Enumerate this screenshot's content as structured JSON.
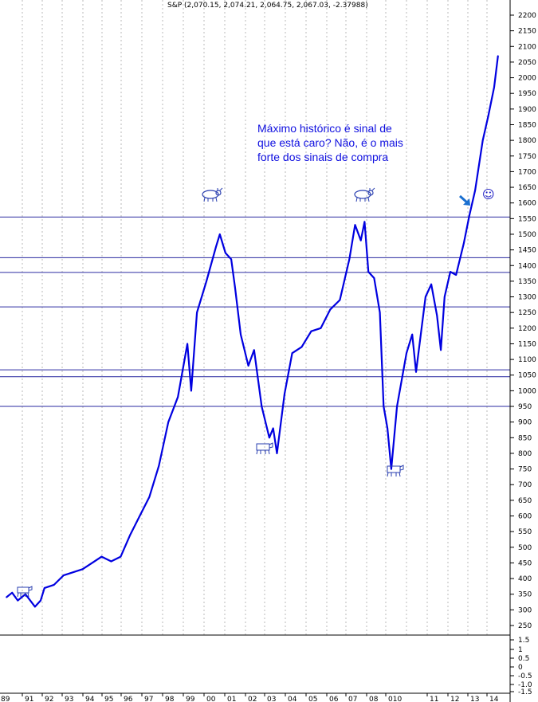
{
  "chart_data": {
    "type": "line",
    "title": "S&P (2,070.15, 2,074.21, 2,064.75, 2,067.03, -2.37988)",
    "x_ticks": [
      "89",
      "91",
      "92",
      "93",
      "94",
      "95",
      "96",
      "97",
      "98",
      "99",
      "00",
      "01",
      "02",
      "03",
      "04",
      "05",
      "06",
      "07",
      "08",
      "010",
      "11",
      "12",
      "13",
      "14"
    ],
    "y_ticks": [
      250,
      300,
      350,
      400,
      450,
      500,
      550,
      600,
      650,
      700,
      750,
      800,
      850,
      900,
      950,
      1000,
      1050,
      1100,
      1150,
      1200,
      1250,
      1300,
      1350,
      1400,
      1450,
      1500,
      1550,
      1600,
      1650,
      1700,
      1750,
      1800,
      1850,
      1900,
      1950,
      2000,
      2050,
      2100,
      2150,
      2200
    ],
    "ylim": [
      200,
      2230
    ],
    "xlim": [
      1989.0,
      2015.0
    ],
    "series": [
      {
        "x": [
          1989.0,
          1989.3,
          1989.6,
          1990.0,
          1990.5,
          1990.8,
          1991.0,
          1991.5,
          1992.0,
          1992.5,
          1993.0,
          1993.5,
          1994.0,
          1994.5,
          1995.0,
          1995.5,
          1996.0,
          1996.5,
          1997.0,
          1997.5,
          1998.0,
          1998.5,
          1998.7,
          1999.0,
          1999.5,
          2000.0,
          2000.2,
          2000.5,
          2000.8,
          2001.0,
          2001.3,
          2001.7,
          2002.0,
          2002.4,
          2002.8,
          2003.0,
          2003.2,
          2003.6,
          2004.0,
          2004.5,
          2005.0,
          2005.5,
          2006.0,
          2006.5,
          2007.0,
          2007.3,
          2007.6,
          2007.8,
          2008.0,
          2008.3,
          2008.6,
          2008.8,
          2009.0,
          2009.2,
          2009.5,
          2010.0,
          2010.3,
          2010.5,
          2011.0,
          2011.3,
          2011.6,
          2011.8,
          2012.0,
          2012.3,
          2012.6,
          2013.0,
          2013.3,
          2013.6,
          2014.0,
          2014.3,
          2014.6,
          2014.8
        ],
        "values": [
          340,
          355,
          330,
          350,
          310,
          330,
          370,
          380,
          410,
          420,
          430,
          450,
          470,
          455,
          470,
          540,
          600,
          660,
          760,
          900,
          980,
          1150,
          1000,
          1250,
          1350,
          1460,
          1500,
          1440,
          1420,
          1330,
          1180,
          1080,
          1130,
          950,
          850,
          880,
          800,
          990,
          1120,
          1140,
          1190,
          1200,
          1260,
          1290,
          1420,
          1530,
          1480,
          1540,
          1380,
          1360,
          1250,
          950,
          880,
          750,
          950,
          1120,
          1180,
          1060,
          1300,
          1340,
          1240,
          1130,
          1300,
          1380,
          1370,
          1470,
          1560,
          1640,
          1800,
          1880,
          1970,
          2070
        ]
      }
    ],
    "reference_lines": [
      1555,
      1425,
      1378,
      1268,
      1067,
      1045,
      950
    ],
    "lower_panel": {
      "y_ticks": [
        "1.5",
        "1",
        "0.5",
        "0",
        "-0.5",
        "-1.0",
        "-1.5"
      ]
    },
    "annotation": [
      "Máximo histórico é sinal de",
      "que está caro? Não, é o mais",
      "forte dos sinais de compra"
    ],
    "smiley": "☺"
  },
  "colors": {
    "line": "#0000e0",
    "reference_line": "#2a2aa0",
    "grid": "#b8b8b8",
    "annotation": "#1010e0"
  },
  "icons": [
    "bull-icon",
    "bull-icon",
    "bear-icon",
    "bear-icon",
    "bear-icon",
    "arrow-icon",
    "smiley-icon"
  ]
}
